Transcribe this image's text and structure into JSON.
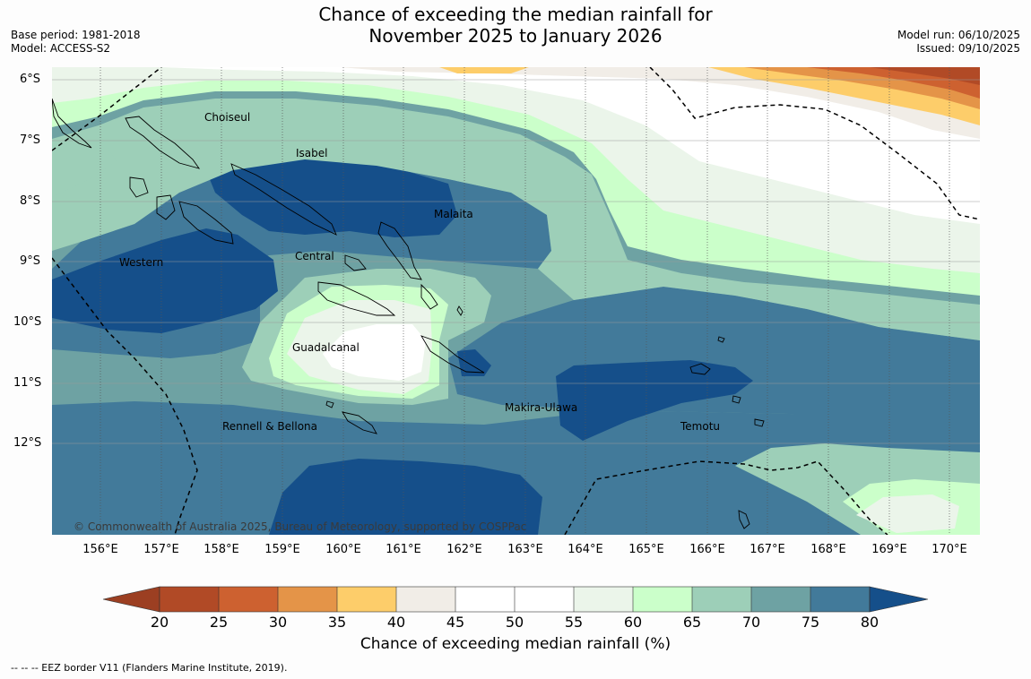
{
  "title_line1": "Chance of exceeding the median rainfall for",
  "title_line2": "November 2025 to January 2026",
  "base_period": "Base period: 1981-2018",
  "model": "Model: ACCESS-S2",
  "model_run": "Model run: 06/10/2025",
  "issued": "Issued: 09/10/2025",
  "lat_labels": [
    "6°S",
    "7°S",
    "8°S",
    "9°S",
    "10°S",
    "11°S",
    "12°S"
  ],
  "lon_labels": [
    "156°E",
    "157°E",
    "158°E",
    "159°E",
    "160°E",
    "161°E",
    "162°E",
    "163°E",
    "164°E",
    "165°E",
    "166°E",
    "167°E",
    "168°E",
    "169°E",
    "170°E"
  ],
  "places": {
    "choiseul": "Choiseul",
    "isabel": "Isabel",
    "malaita": "Malaita",
    "central": "Central",
    "western": "Western",
    "guadalcanal": "Guadalcanal",
    "makira": "Makira-Ulawa",
    "temotu": "Temotu",
    "rennell": "Rennell & Bellona"
  },
  "copyright": "© Commonwealth of Australia 2025, Bureau of Meteorology, supported by COSPPac",
  "colorbar": {
    "title": "Chance of exceeding median rainfall (%)",
    "ticks": [
      "20",
      "25",
      "30",
      "35",
      "40",
      "45",
      "50",
      "55",
      "60",
      "65",
      "70",
      "75",
      "80"
    ],
    "colors": {
      "below_20": "#9c3f22",
      "c20_25": "#b14a26",
      "c25_30": "#cd6130",
      "c30_35": "#e49448",
      "c35_40": "#fdcd6a",
      "c40_45": "#f1ede7",
      "c45_50": "#ffffff",
      "c50_55": "#ffffff",
      "c55_60": "#ebf5ea",
      "c60_65": "#cbffca",
      "c65_70": "#9dcfb8",
      "c70_75": "#6ea2a3",
      "c75_80": "#427a9a",
      "above_80": "#154f8a"
    }
  },
  "footer": "--  --  -- EEZ border V11 (Flanders Marine Institute, 2019)."
}
